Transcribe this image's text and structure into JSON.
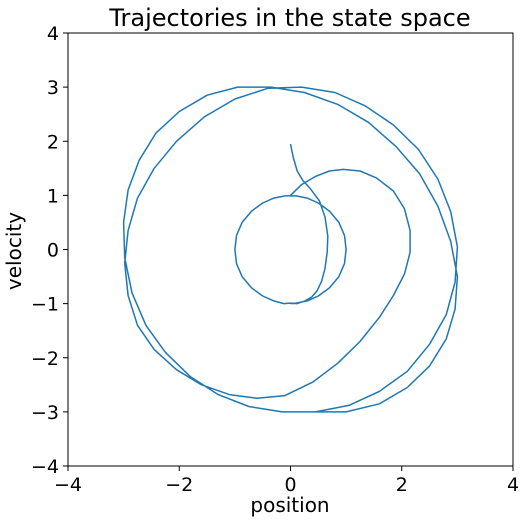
{
  "chart_data": {
    "type": "line",
    "title": "Trajectories in the state space",
    "xlabel": "position",
    "ylabel": "velocity",
    "xlim": [
      -4,
      4
    ],
    "ylim": [
      -4,
      4
    ],
    "x_ticks": [
      -4,
      -2,
      0,
      2,
      4
    ],
    "y_ticks": [
      -4,
      -3,
      -2,
      -1,
      0,
      1,
      2,
      3,
      4
    ],
    "x_tick_labels": [
      "−4",
      "−2",
      "0",
      "2",
      "4"
    ],
    "y_tick_labels": [
      "−4",
      "−3",
      "−2",
      "−1",
      "0",
      "1",
      "2",
      "3",
      "4"
    ],
    "grid": false,
    "line_color": "#1f77b4",
    "series": [
      {
        "x": [
          0.0,
          0.05,
          0.12,
          0.22,
          0.36,
          0.52,
          0.62,
          0.67,
          0.66,
          0.62,
          0.56,
          0.48,
          0.38,
          0.26,
          0.12,
          0.0,
          -0.12,
          -0.3,
          -0.5,
          -0.7,
          -0.87,
          -0.97,
          -1.0,
          -0.97,
          -0.87,
          -0.7,
          -0.5,
          -0.3,
          -0.1,
          0.1,
          0.3,
          0.5,
          0.7,
          0.87,
          0.97,
          1.0,
          0.97,
          0.87,
          0.7,
          0.5,
          0.3,
          0.1,
          0.0
        ],
        "y": [
          1.95,
          1.7,
          1.45,
          1.28,
          1.12,
          0.9,
          0.6,
          0.25,
          -0.05,
          -0.35,
          -0.58,
          -0.76,
          -0.88,
          -0.95,
          -1.0,
          -0.99,
          -1.0,
          -0.95,
          -0.86,
          -0.71,
          -0.5,
          -0.26,
          0.0,
          0.26,
          0.5,
          0.71,
          0.86,
          0.95,
          0.99,
          0.99,
          0.95,
          0.86,
          0.71,
          0.5,
          0.26,
          0.0,
          -0.26,
          -0.5,
          -0.71,
          -0.86,
          -0.95,
          -0.99,
          -1.0
        ]
      },
      {
        "x": [
          0.0,
          0.2,
          0.45,
          0.7,
          0.95,
          1.25,
          1.55,
          1.85,
          2.05,
          2.15,
          2.15,
          2.05,
          1.85,
          1.6,
          1.25,
          0.85,
          0.4,
          -0.1,
          -0.6,
          -1.1,
          -1.6,
          -2.05,
          -2.45,
          -2.75,
          -2.92,
          -2.98,
          -2.92,
          -2.75,
          -2.45,
          -2.05,
          -1.55,
          -1.0,
          -0.4,
          0.2,
          0.8,
          1.35,
          1.85,
          2.3,
          2.65,
          2.88,
          3.0,
          2.96,
          2.8,
          2.5,
          2.1,
          1.6,
          1.05,
          0.45,
          -0.15,
          -0.75,
          -1.3,
          -1.8,
          -2.25,
          -2.6,
          -2.85,
          -2.98,
          -3.0,
          -2.92,
          -2.72,
          -2.42,
          -2.0,
          -1.5,
          -0.95,
          -0.35,
          0.25,
          0.85,
          1.4,
          1.9,
          2.32,
          2.65,
          2.88,
          3.0,
          2.96,
          2.8,
          2.5,
          2.1,
          1.6,
          1.0,
          0.4,
          0.0
        ],
        "y": [
          1.0,
          1.2,
          1.35,
          1.45,
          1.48,
          1.45,
          1.32,
          1.08,
          0.75,
          0.35,
          -0.05,
          -0.45,
          -0.85,
          -1.25,
          -1.7,
          -2.1,
          -2.45,
          -2.7,
          -2.75,
          -2.68,
          -2.5,
          -2.22,
          -1.85,
          -1.4,
          -0.85,
          -0.25,
          0.35,
          0.95,
          1.5,
          2.0,
          2.45,
          2.78,
          2.98,
          3.0,
          2.9,
          2.65,
          2.3,
          1.85,
          1.3,
          0.7,
          0.05,
          -0.6,
          -1.2,
          -1.75,
          -2.25,
          -2.62,
          -2.88,
          -3.0,
          -3.0,
          -2.9,
          -2.68,
          -2.35,
          -1.9,
          -1.4,
          -0.8,
          -0.15,
          0.5,
          1.1,
          1.65,
          2.15,
          2.55,
          2.85,
          3.0,
          3.0,
          2.9,
          2.68,
          2.35,
          1.9,
          1.4,
          0.8,
          0.15,
          -0.5,
          -1.1,
          -1.65,
          -2.15,
          -2.55,
          -2.85,
          -3.0,
          -3.0,
          -3.0
        ]
      }
    ]
  }
}
